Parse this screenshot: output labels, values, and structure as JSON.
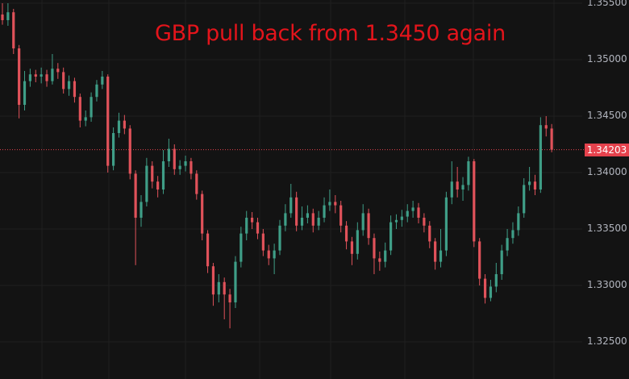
{
  "chart_data": {
    "type": "candlestick",
    "title": "GBP pull back from 1.3450 again",
    "ylim": [
      1.3238,
      1.3553
    ],
    "y_ticks": [
      "1.35500",
      "1.35000",
      "1.34500",
      "1.34000",
      "1.33500",
      "1.33000",
      "1.32500"
    ],
    "y_tick_values": [
      1.355,
      1.35,
      1.345,
      1.34,
      1.335,
      1.33,
      1.325
    ],
    "last_price": 1.34203,
    "last_price_label": "1.34203",
    "grid": true,
    "colors": {
      "background": "#131313",
      "up": "#3f9e87",
      "down": "#e0525a",
      "title": "#e3141b",
      "last_price": "#e5424d"
    },
    "candles_ohlc": [
      [
        1.354,
        1.355,
        1.3531,
        1.3535
      ],
      [
        1.3535,
        1.355,
        1.353,
        1.3542
      ],
      [
        1.3542,
        1.3545,
        1.3505,
        1.351
      ],
      [
        1.351,
        1.3513,
        1.3448,
        1.346
      ],
      [
        1.346,
        1.349,
        1.3455,
        1.3481
      ],
      [
        1.3481,
        1.3492,
        1.3476,
        1.3487
      ],
      [
        1.3487,
        1.3491,
        1.348,
        1.3485
      ],
      [
        1.3485,
        1.3493,
        1.3479,
        1.3487
      ],
      [
        1.3487,
        1.3491,
        1.3476,
        1.3481
      ],
      [
        1.3481,
        1.3505,
        1.3478,
        1.3492
      ],
      [
        1.3492,
        1.3497,
        1.3483,
        1.3489
      ],
      [
        1.3489,
        1.3493,
        1.347,
        1.3474
      ],
      [
        1.3474,
        1.3486,
        1.3468,
        1.3481
      ],
      [
        1.3481,
        1.3484,
        1.3462,
        1.3467
      ],
      [
        1.3467,
        1.347,
        1.344,
        1.3446
      ],
      [
        1.3446,
        1.3455,
        1.3441,
        1.3449
      ],
      [
        1.3449,
        1.3471,
        1.3445,
        1.3467
      ],
      [
        1.3467,
        1.3482,
        1.3463,
        1.3478
      ],
      [
        1.3478,
        1.349,
        1.3474,
        1.3485
      ],
      [
        1.3485,
        1.3487,
        1.34,
        1.3406
      ],
      [
        1.3406,
        1.344,
        1.3402,
        1.3435
      ],
      [
        1.3435,
        1.3453,
        1.3431,
        1.3446
      ],
      [
        1.3446,
        1.3451,
        1.3434,
        1.3439
      ],
      [
        1.3439,
        1.3442,
        1.3394,
        1.3399
      ],
      [
        1.3399,
        1.3402,
        1.3318,
        1.336
      ],
      [
        1.336,
        1.338,
        1.3352,
        1.3374
      ],
      [
        1.3374,
        1.3413,
        1.337,
        1.3406
      ],
      [
        1.3406,
        1.341,
        1.3386,
        1.3392
      ],
      [
        1.3392,
        1.3397,
        1.3378,
        1.3385
      ],
      [
        1.3385,
        1.342,
        1.3381,
        1.341
      ],
      [
        1.341,
        1.343,
        1.3405,
        1.3421
      ],
      [
        1.3421,
        1.3425,
        1.3398,
        1.3403
      ],
      [
        1.3403,
        1.3411,
        1.3398,
        1.3406
      ],
      [
        1.3406,
        1.3415,
        1.3401,
        1.341
      ],
      [
        1.341,
        1.3413,
        1.3394,
        1.3399
      ],
      [
        1.3399,
        1.3402,
        1.3376,
        1.3381
      ],
      [
        1.3381,
        1.3384,
        1.334,
        1.3346
      ],
      [
        1.3346,
        1.3349,
        1.3311,
        1.3317
      ],
      [
        1.3317,
        1.332,
        1.3282,
        1.3292
      ],
      [
        1.3292,
        1.331,
        1.3285,
        1.3303
      ],
      [
        1.3303,
        1.3307,
        1.327,
        1.3292
      ],
      [
        1.3292,
        1.3297,
        1.3262,
        1.3285
      ],
      [
        1.3285,
        1.3326,
        1.328,
        1.3321
      ],
      [
        1.3321,
        1.3352,
        1.3316,
        1.3346
      ],
      [
        1.3346,
        1.3366,
        1.334,
        1.336
      ],
      [
        1.336,
        1.3365,
        1.335,
        1.3356
      ],
      [
        1.3356,
        1.336,
        1.3341,
        1.3346
      ],
      [
        1.3346,
        1.335,
        1.3326,
        1.3331
      ],
      [
        1.3331,
        1.3336,
        1.3318,
        1.3324
      ],
      [
        1.3324,
        1.3337,
        1.331,
        1.3331
      ],
      [
        1.3331,
        1.3358,
        1.3327,
        1.3353
      ],
      [
        1.3353,
        1.3372,
        1.3348,
        1.3364
      ],
      [
        1.3364,
        1.339,
        1.336,
        1.3378
      ],
      [
        1.3378,
        1.3383,
        1.3348,
        1.3353
      ],
      [
        1.3353,
        1.337,
        1.3349,
        1.336
      ],
      [
        1.336,
        1.3371,
        1.3355,
        1.3364
      ],
      [
        1.3364,
        1.3368,
        1.3347,
        1.3353
      ],
      [
        1.3353,
        1.3366,
        1.3349,
        1.336
      ],
      [
        1.336,
        1.3378,
        1.3356,
        1.3371
      ],
      [
        1.3371,
        1.3385,
        1.3366,
        1.3374
      ],
      [
        1.3374,
        1.338,
        1.3364,
        1.3371
      ],
      [
        1.3371,
        1.3375,
        1.3347,
        1.3353
      ],
      [
        1.3353,
        1.3357,
        1.3332,
        1.3339
      ],
      [
        1.3339,
        1.3343,
        1.3318,
        1.3328
      ],
      [
        1.3328,
        1.3356,
        1.3323,
        1.3349
      ],
      [
        1.3349,
        1.3372,
        1.3344,
        1.3364
      ],
      [
        1.3364,
        1.3368,
        1.3336,
        1.3342
      ],
      [
        1.3342,
        1.3346,
        1.331,
        1.3324
      ],
      [
        1.3324,
        1.333,
        1.3313,
        1.3321
      ],
      [
        1.3321,
        1.3338,
        1.3316,
        1.3331
      ],
      [
        1.3331,
        1.3362,
        1.3327,
        1.3356
      ],
      [
        1.3356,
        1.3363,
        1.335,
        1.3358
      ],
      [
        1.3358,
        1.3367,
        1.3352,
        1.3361
      ],
      [
        1.3361,
        1.3372,
        1.3356,
        1.3366
      ],
      [
        1.3366,
        1.3375,
        1.336,
        1.3369
      ],
      [
        1.3369,
        1.3373,
        1.3355,
        1.336
      ],
      [
        1.336,
        1.3364,
        1.3347,
        1.3353
      ],
      [
        1.3353,
        1.3357,
        1.3333,
        1.3339
      ],
      [
        1.3339,
        1.3342,
        1.3314,
        1.3321
      ],
      [
        1.3321,
        1.335,
        1.3316,
        1.3331
      ],
      [
        1.3331,
        1.3383,
        1.3326,
        1.3378
      ],
      [
        1.3378,
        1.341,
        1.3372,
        1.3392
      ],
      [
        1.3392,
        1.3405,
        1.3378,
        1.3385
      ],
      [
        1.3385,
        1.3396,
        1.3375,
        1.3389
      ],
      [
        1.3389,
        1.3414,
        1.3384,
        1.341
      ],
      [
        1.341,
        1.3412,
        1.3334,
        1.3339
      ],
      [
        1.3339,
        1.3342,
        1.33,
        1.3306
      ],
      [
        1.3306,
        1.331,
        1.3284,
        1.3289
      ],
      [
        1.3289,
        1.3305,
        1.3286,
        1.3299
      ],
      [
        1.3299,
        1.332,
        1.3294,
        1.331
      ],
      [
        1.331,
        1.3336,
        1.3305,
        1.3331
      ],
      [
        1.3331,
        1.335,
        1.3326,
        1.3342
      ],
      [
        1.3342,
        1.3356,
        1.3337,
        1.3349
      ],
      [
        1.3349,
        1.337,
        1.3344,
        1.3364
      ],
      [
        1.3364,
        1.3395,
        1.336,
        1.3389
      ],
      [
        1.3389,
        1.3405,
        1.3384,
        1.3392
      ],
      [
        1.3392,
        1.3398,
        1.338,
        1.3385
      ],
      [
        1.3385,
        1.3449,
        1.3382,
        1.3442
      ],
      [
        1.3442,
        1.345,
        1.3432,
        1.3439
      ],
      [
        1.3439,
        1.3443,
        1.3418,
        1.34203
      ]
    ]
  }
}
